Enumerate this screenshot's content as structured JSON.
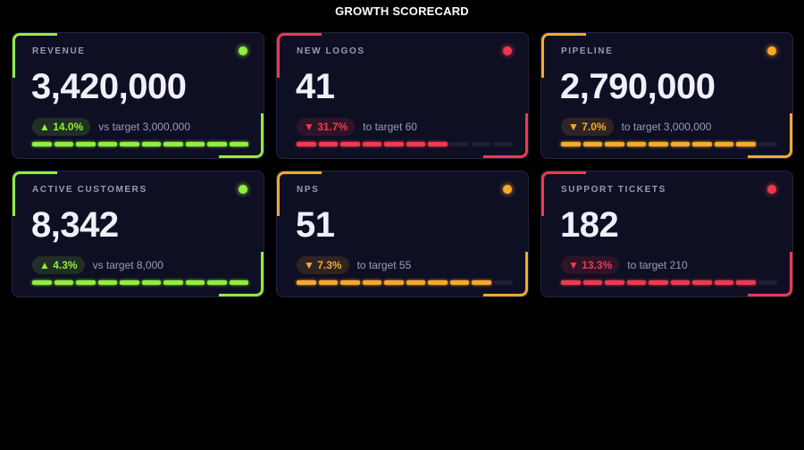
{
  "title": "GROWTH SCORECARD",
  "colors": {
    "green": "#8fef3c",
    "red": "#f0394f",
    "orange": "#f7a92a",
    "card_bg": "#0f0f24"
  },
  "cards": [
    {
      "label": "REVENUE",
      "value": "3,420,000",
      "delta": "▲ 14.0%",
      "target": "vs target 3,000,000",
      "status": "green",
      "segments_filled": 10,
      "segments_total": 10
    },
    {
      "label": "NEW LOGOS",
      "value": "41",
      "delta": "▼ 31.7%",
      "target": "to target 60",
      "status": "red",
      "segments_filled": 7,
      "segments_total": 10
    },
    {
      "label": "PIPELINE",
      "value": "2,790,000",
      "delta": "▼ 7.0%",
      "target": "to target 3,000,000",
      "status": "orange",
      "segments_filled": 9,
      "segments_total": 10
    },
    {
      "label": "ACTIVE CUSTOMERS",
      "value": "8,342",
      "delta": "▲ 4.3%",
      "target": "vs target 8,000",
      "status": "green",
      "segments_filled": 10,
      "segments_total": 10
    },
    {
      "label": "NPS",
      "value": "51",
      "delta": "▼ 7.3%",
      "target": "to target 55",
      "status": "orange",
      "segments_filled": 9,
      "segments_total": 10
    },
    {
      "label": "SUPPORT TICKETS",
      "value": "182",
      "delta": "▼ 13.3%",
      "target": "to target 210",
      "status": "red",
      "segments_filled": 9,
      "segments_total": 10
    }
  ]
}
